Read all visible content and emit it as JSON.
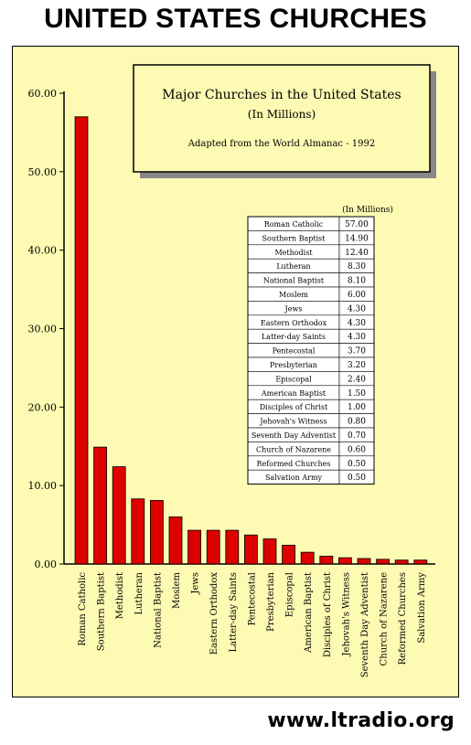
{
  "banner": "UNITED STATES CHURCHES",
  "footer": "www.ltradio.org",
  "chart_data": {
    "type": "bar",
    "title": "Major Churches in the United States",
    "subtitle": "(In Millions)",
    "source": "Adapted from the World Almanac - 1992",
    "table_header": "(In Millions)",
    "categories": [
      "Roman Catholic",
      "Southern Baptist",
      "Methodist",
      "Lutheran",
      "National Baptist",
      "Moslem",
      "Jews",
      "Eastern Orthodox",
      "Latter-day Saints",
      "Pentecostal",
      "Presbyterian",
      "Episcopal",
      "American Baptist",
      "Disciples of Christ",
      "Jehovah's Witness",
      "Seventh Day Adventist",
      "Church of Nazarene",
      "Reformed Churches",
      "Salvation Army"
    ],
    "values": [
      57.0,
      14.9,
      12.4,
      8.3,
      8.1,
      6.0,
      4.3,
      4.3,
      4.3,
      3.7,
      3.2,
      2.4,
      1.5,
      1.0,
      0.8,
      0.7,
      0.6,
      0.5,
      0.5
    ],
    "value_labels": [
      "57.00",
      "14.90",
      "12.40",
      "8.30",
      "8.10",
      "6.00",
      "4.30",
      "4.30",
      "4.30",
      "3.70",
      "3.20",
      "2.40",
      "1.50",
      "1.00",
      "0.80",
      "0.70",
      "0.60",
      "0.50",
      "0.50"
    ],
    "yticks": [
      "0.00",
      "10.00",
      "20.00",
      "30.00",
      "40.00",
      "50.00",
      "60.00"
    ],
    "ylim": [
      0,
      60
    ],
    "bar_color": "#dd0000",
    "background_color": "#fdfbb3"
  }
}
